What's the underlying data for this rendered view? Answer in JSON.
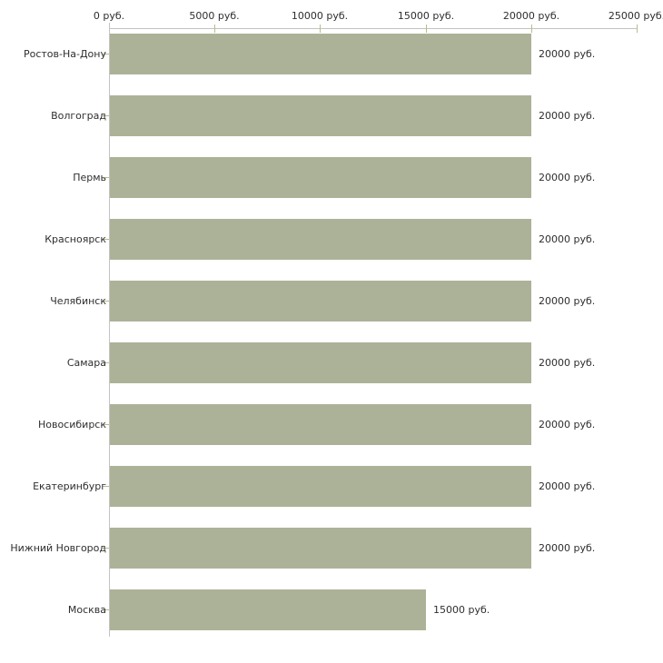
{
  "chart_data": {
    "type": "bar",
    "orientation": "horizontal",
    "title": "",
    "categories": [
      "Ростов-На-Дону",
      "Волгоград",
      "Пермь",
      "Красноярск",
      "Челябинск",
      "Самара",
      "Новосибирск",
      "Екатеринбург",
      "Нижний Новгород",
      "Москва"
    ],
    "values": [
      20000,
      20000,
      20000,
      20000,
      20000,
      20000,
      20000,
      20000,
      20000,
      15000
    ],
    "value_labels": [
      "20000 руб.",
      "20000 руб.",
      "20000 руб.",
      "20000 руб.",
      "20000 руб.",
      "20000 руб.",
      "20000 руб.",
      "20000 руб.",
      "20000 руб.",
      "15000 руб."
    ],
    "xlabel": "",
    "ylabel": "",
    "x_axis": {
      "position": "top",
      "range": [
        0,
        25000
      ],
      "tick_values": [
        0,
        5000,
        10000,
        15000,
        20000,
        25000
      ],
      "tick_labels": [
        "0 руб.",
        "5000 руб.",
        "10000 руб.",
        "15000 руб.",
        "20000 руб.",
        "25000 руб."
      ],
      "unit": "руб."
    },
    "grid": false,
    "legend": false,
    "colors": {
      "bar_fill": "#acb298",
      "axis_line": "#c3c3c3",
      "tick_mark": "#b8bc8e",
      "label_text": "#2e2e2e",
      "background": "#ffffff"
    }
  }
}
